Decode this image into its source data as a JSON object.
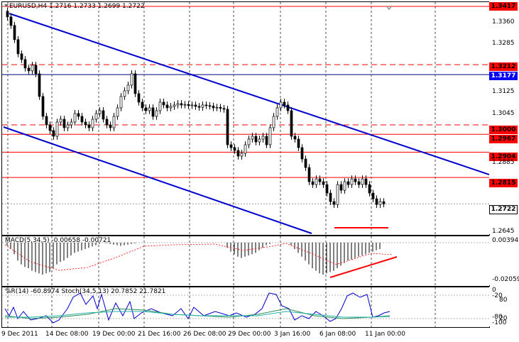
{
  "header": {
    "symbol": "EURUSD,H4",
    "ohlc": "1.2716 1.2733 1.2699 1.2722"
  },
  "price_axis": {
    "ticks": [
      "1.3360",
      "1.3285",
      "1.3125",
      "1.3045",
      "1.2885",
      "1.2645"
    ],
    "levels": [
      {
        "label": "1.3417",
        "style": "red"
      },
      {
        "label": "1.3212",
        "style": "red"
      },
      {
        "label": "1.3177",
        "style": "blue"
      },
      {
        "label": "1.3000",
        "style": "red"
      },
      {
        "label": "1.2967",
        "style": "red"
      },
      {
        "label": "1.2904",
        "style": "red"
      },
      {
        "label": "1.2815",
        "style": "red"
      },
      {
        "label": "1.2722",
        "style": "current"
      }
    ]
  },
  "macd": {
    "title": "MACD(5,34,5) -0.00658 -0.00721",
    "ticks": [
      "0.00394",
      "-0.02059"
    ]
  },
  "stoch": {
    "title": "%R(14) -60.8974  Stoch(34,5,13) 20.7852 21.7821",
    "ticks": [
      "0",
      "-20",
      "80",
      "-80",
      "20",
      "-100"
    ]
  },
  "date_axis": {
    "labels": [
      "9 Dec 2011",
      "14 Dec 08:00",
      "19 Dec 00:00",
      "21 Dec 16:00",
      "26 Dec 08:00",
      "29 Dec 00:00",
      "3 Jan 16:00",
      "6 Jan 08:00",
      "11 Jan 00:00"
    ]
  },
  "colors": {
    "bull": "#ffffff",
    "bear": "#000000",
    "level_red": "#ff0000",
    "trend_blue": "#0000cd",
    "macd_signal": "#ff0000",
    "stoch_main": "#0000cd",
    "stoch_signal": "#2e8b57"
  }
}
